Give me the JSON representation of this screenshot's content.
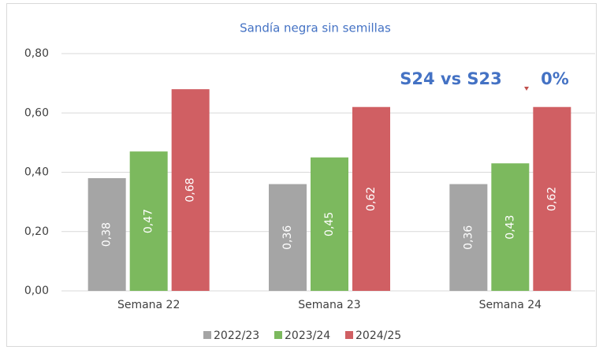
{
  "chart_data": {
    "type": "bar",
    "title": "Sandía negra sin semillas",
    "categories": [
      "Semana 22",
      "Semana 23",
      "Semana 24"
    ],
    "series": [
      {
        "name": "2022/23",
        "color": "#a5a5a5",
        "values": [
          0.38,
          0.36,
          0.36
        ],
        "value_labels": [
          "0,38",
          "0,36",
          "0,36"
        ]
      },
      {
        "name": "2023/24",
        "color": "#7cb95e",
        "values": [
          0.47,
          0.45,
          0.43
        ],
        "value_labels": [
          "0,47",
          "0,45",
          "0,43"
        ]
      },
      {
        "name": "2024/25",
        "color": "#d05f63",
        "values": [
          0.68,
          0.62,
          0.62
        ],
        "value_labels": [
          "0,68",
          "0,62",
          "0,62"
        ]
      }
    ],
    "ylim": [
      0,
      0.8
    ],
    "yticks": [
      {
        "value": 0,
        "label": "0,00"
      },
      {
        "value": 0.2,
        "label": "0,20"
      },
      {
        "value": 0.4,
        "label": "0,40"
      },
      {
        "value": 0.6,
        "label": "0,60"
      },
      {
        "value": 0.8,
        "label": "0,80"
      }
    ],
    "grid": true,
    "legend": "bottom",
    "annotations": [
      "S24 vs S23",
      "0%"
    ]
  }
}
